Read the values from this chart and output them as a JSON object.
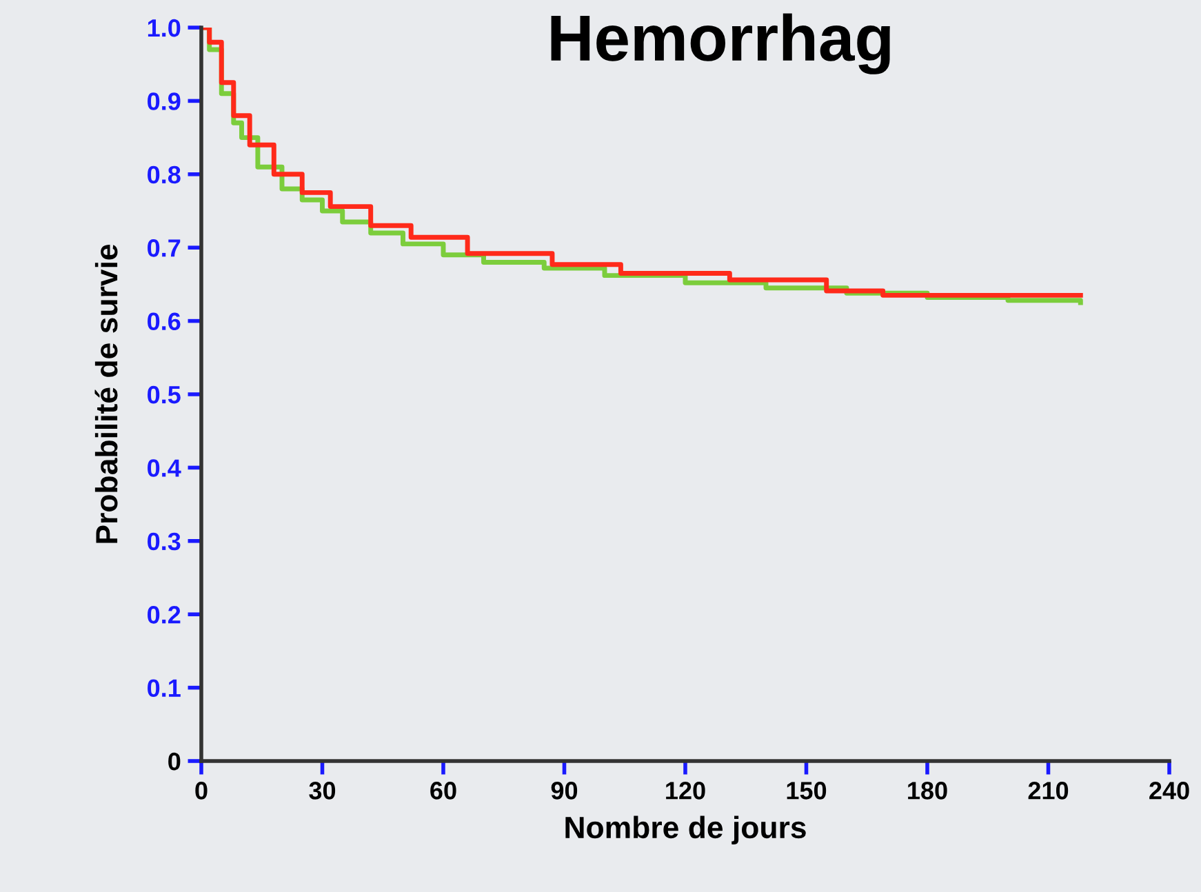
{
  "chart_data": {
    "type": "step",
    "title": "Hemorrhag",
    "xlabel": "Nombre de jours",
    "ylabel": "Probabilité de survie",
    "xlim": [
      0,
      240
    ],
    "xticks": [
      0,
      30,
      60,
      90,
      120,
      150,
      180,
      210,
      240
    ],
    "ylim": [
      0,
      1.0
    ],
    "yticks": [
      0,
      0.1,
      0.2,
      0.3,
      0.4,
      0.5,
      0.6,
      0.7,
      0.8,
      0.9,
      {
        "value": 1.0,
        "label": "1.0"
      }
    ],
    "grid": false,
    "legend": false,
    "series": [
      {
        "color": "#7ccd3c",
        "x": [
          0,
          2,
          5,
          8,
          10,
          14,
          20,
          25,
          30,
          35,
          42,
          50,
          60,
          70,
          85,
          100,
          120,
          140,
          160,
          180,
          200,
          218
        ],
        "values": [
          1.0,
          0.97,
          0.91,
          0.87,
          0.85,
          0.81,
          0.78,
          0.765,
          0.75,
          0.735,
          0.72,
          0.705,
          0.69,
          0.68,
          0.672,
          0.662,
          0.652,
          0.645,
          0.638,
          0.632,
          0.628,
          0.625
        ]
      },
      {
        "color": "#ff2a1a",
        "x": [
          0,
          2,
          5,
          8,
          12,
          18,
          25,
          32,
          42,
          52,
          66,
          87,
          104,
          131,
          155,
          169,
          218
        ],
        "values": [
          1.0,
          0.98,
          0.925,
          0.88,
          0.84,
          0.8,
          0.775,
          0.756,
          0.73,
          0.714,
          0.692,
          0.677,
          0.665,
          0.656,
          0.641,
          0.635,
          0.635
        ]
      }
    ]
  }
}
